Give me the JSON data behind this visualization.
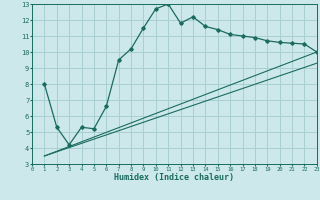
{
  "title": "",
  "xlabel": "Humidex (Indice chaleur)",
  "xlim": [
    0,
    23
  ],
  "ylim": [
    3,
    13
  ],
  "xticks": [
    0,
    1,
    2,
    3,
    4,
    5,
    6,
    7,
    8,
    9,
    10,
    11,
    12,
    13,
    14,
    15,
    16,
    17,
    18,
    19,
    20,
    21,
    22,
    23
  ],
  "yticks": [
    3,
    4,
    5,
    6,
    7,
    8,
    9,
    10,
    11,
    12,
    13
  ],
  "bg_color": "#cde8ea",
  "grid_color": "#a8cfd2",
  "line_color": "#1a6b60",
  "line1_x": [
    1,
    2,
    3,
    4,
    5,
    6,
    7,
    8,
    9,
    10,
    11,
    12,
    13,
    14,
    15,
    16,
    17,
    18,
    19,
    20,
    21,
    22,
    23
  ],
  "line1_y": [
    8.0,
    5.3,
    4.2,
    5.3,
    5.2,
    6.6,
    9.5,
    10.2,
    11.5,
    12.7,
    13.0,
    11.8,
    12.2,
    11.6,
    11.4,
    11.1,
    11.0,
    10.9,
    10.7,
    10.6,
    10.55,
    10.5,
    10.0
  ],
  "line2_x": [
    1,
    23
  ],
  "line2_y": [
    3.5,
    10.0
  ],
  "line3_x": [
    1,
    23
  ],
  "line3_y": [
    3.5,
    9.3
  ]
}
